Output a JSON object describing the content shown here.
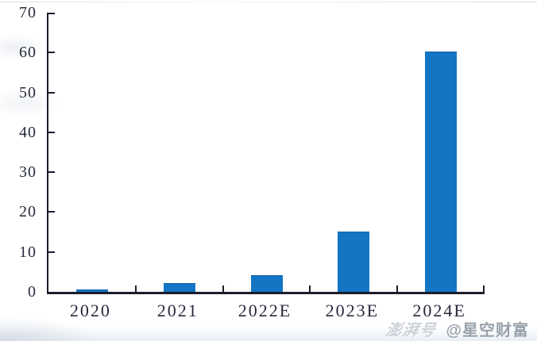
{
  "page": {
    "background_color": "#ffffff"
  },
  "chart_data": {
    "type": "bar",
    "categories": [
      "2020",
      "2021",
      "2022E",
      "2023E",
      "2024E"
    ],
    "values": [
      0.3,
      2,
      4,
      15,
      60
    ],
    "title": "",
    "xlabel": "",
    "ylabel": "",
    "ylim": [
      0,
      70
    ],
    "yticks": [
      0,
      10,
      20,
      30,
      40,
      50,
      60,
      70
    ],
    "grid": false,
    "legend": "none",
    "bar_color": "#1375C4",
    "axis_color": "#1b1d2c",
    "tick_label_color": "#272a3c",
    "tick_style": "inward"
  },
  "watermark": {
    "platform_logo": "澎湃号",
    "account": "@星空财富"
  }
}
